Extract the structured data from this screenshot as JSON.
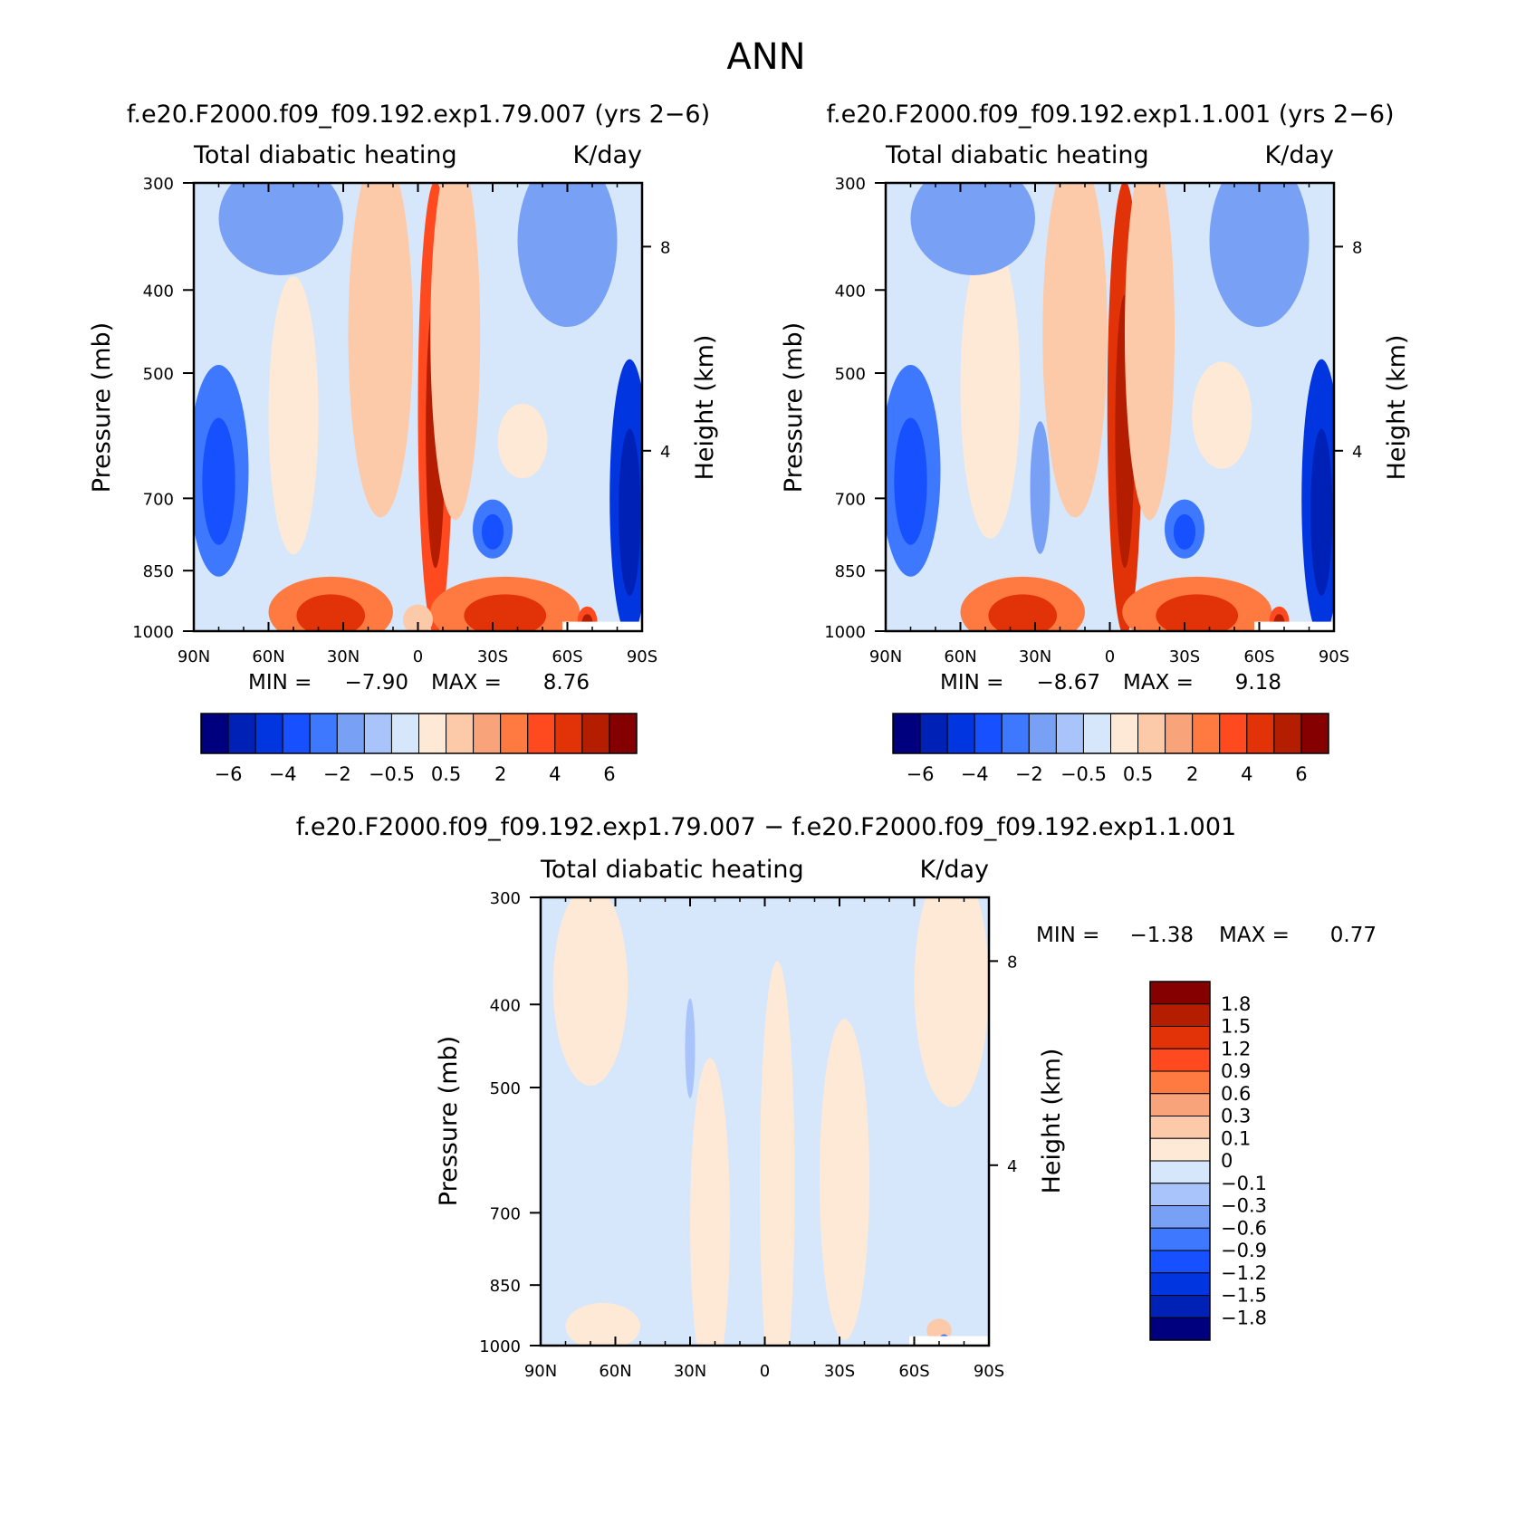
{
  "title": "ANN",
  "chart_data": [
    {
      "type": "heatmap",
      "title": "f.e20.F2000.f09_f09.192.exp1.79.007 (yrs 2−6)",
      "variable": "Total diabatic heating",
      "units": "K/day",
      "ylabel": "Pressure (mb)",
      "ylabel_right": "Height (km)",
      "x_ticks": [
        "90N",
        "60N",
        "30N",
        "0",
        "30S",
        "60S",
        "90S"
      ],
      "y_ticks": [
        "300",
        "400",
        "500",
        "700",
        "850",
        "1000"
      ],
      "y_right_ticks": [
        "8",
        "4"
      ],
      "xlim": [
        "90N",
        "90S"
      ],
      "ylim": [
        1000,
        300
      ],
      "min_label": "MIN =",
      "min_value": "−7.90",
      "max_label": "MAX =",
      "max_value": "8.76",
      "colorbar_levels": [
        "−6",
        "−4",
        "−2",
        "−0.5",
        "0.5",
        "2",
        "4",
        "6"
      ],
      "blobs": [
        {
          "lat": -7,
          "p": 550,
          "value": 4.0,
          "rlat": 7,
          "rp": 300
        },
        {
          "lat": 15,
          "p": 450,
          "value": 1.0,
          "rlat": 13,
          "rp": 220
        },
        {
          "lat": -15,
          "p": 450,
          "value": 1.0,
          "rlat": 10,
          "rp": 230
        },
        {
          "lat": 50,
          "p": 560,
          "value": 0.4,
          "rlat": 10,
          "rp": 200
        },
        {
          "lat": -42,
          "p": 600,
          "value": 0.4,
          "rlat": 10,
          "rp": 60
        },
        {
          "lat": 35,
          "p": 950,
          "value": 3.0,
          "rlat": 25,
          "rp": 90
        },
        {
          "lat": -35,
          "p": 950,
          "value": 3.0,
          "rlat": 30,
          "rp": 90
        },
        {
          "lat": 0,
          "p": 970,
          "value": 0.6,
          "rlat": 6,
          "rp": 40
        },
        {
          "lat": -68,
          "p": 975,
          "value": 4.0,
          "rlat": 4,
          "rp": 40
        },
        {
          "lat": 80,
          "p": 650,
          "value": -2.5,
          "rlat": 12,
          "rp": 180
        },
        {
          "lat": -85,
          "p": 700,
          "value": -4.0,
          "rlat": 8,
          "rp": 250
        },
        {
          "lat": -30,
          "p": 760,
          "value": -2.0,
          "rlat": 8,
          "rp": 60
        },
        {
          "lat": -60,
          "p": 350,
          "value": -1.0,
          "rlat": 20,
          "rp": 80
        },
        {
          "lat": 55,
          "p": 330,
          "value": -1.0,
          "rlat": 25,
          "rp": 50
        }
      ]
    },
    {
      "type": "heatmap",
      "title": "f.e20.F2000.f09_f09.192.exp1.1.001 (yrs 2−6)",
      "variable": "Total diabatic heating",
      "units": "K/day",
      "ylabel": "Pressure (mb)",
      "ylabel_right": "Height (km)",
      "x_ticks": [
        "90N",
        "60N",
        "30N",
        "0",
        "30S",
        "60S",
        "90S"
      ],
      "y_ticks": [
        "300",
        "400",
        "500",
        "700",
        "850",
        "1000"
      ],
      "y_right_ticks": [
        "8",
        "4"
      ],
      "xlim": [
        "90N",
        "90S"
      ],
      "ylim": [
        1000,
        300
      ],
      "min_label": "MIN =",
      "min_value": "−8.67",
      "max_label": "MAX =",
      "max_value": "9.18",
      "colorbar_levels": [
        "−6",
        "−4",
        "−2",
        "−0.5",
        "0.5",
        "2",
        "4",
        "6"
      ],
      "blobs": [
        {
          "lat": -6,
          "p": 550,
          "value": 4.5,
          "rlat": 7,
          "rp": 300
        },
        {
          "lat": 14,
          "p": 450,
          "value": 1.0,
          "rlat": 13,
          "rp": 220
        },
        {
          "lat": -16,
          "p": 450,
          "value": 1.0,
          "rlat": 10,
          "rp": 230
        },
        {
          "lat": 48,
          "p": 520,
          "value": 0.4,
          "rlat": 12,
          "rp": 200
        },
        {
          "lat": -45,
          "p": 560,
          "value": 0.4,
          "rlat": 12,
          "rp": 80
        },
        {
          "lat": 35,
          "p": 950,
          "value": 3.0,
          "rlat": 25,
          "rp": 90
        },
        {
          "lat": -35,
          "p": 950,
          "value": 3.0,
          "rlat": 30,
          "rp": 90
        },
        {
          "lat": -68,
          "p": 975,
          "value": 4.0,
          "rlat": 4,
          "rp": 40
        },
        {
          "lat": 80,
          "p": 650,
          "value": -2.5,
          "rlat": 12,
          "rp": 180
        },
        {
          "lat": -85,
          "p": 700,
          "value": -4.0,
          "rlat": 8,
          "rp": 250
        },
        {
          "lat": -30,
          "p": 760,
          "value": -2.0,
          "rlat": 8,
          "rp": 60
        },
        {
          "lat": 28,
          "p": 680,
          "value": -1.0,
          "rlat": 4,
          "rp": 120
        },
        {
          "lat": -60,
          "p": 350,
          "value": -1.0,
          "rlat": 20,
          "rp": 80
        },
        {
          "lat": 55,
          "p": 330,
          "value": -1.0,
          "rlat": 25,
          "rp": 50
        }
      ]
    },
    {
      "type": "heatmap",
      "title": "f.e20.F2000.f09_f09.192.exp1.79.007 − f.e20.F2000.f09_f09.192.exp1.1.001",
      "variable": "Total diabatic heating",
      "units": "K/day",
      "ylabel": "Pressure (mb)",
      "ylabel_right": "Height (km)",
      "x_ticks": [
        "90N",
        "60N",
        "30N",
        "0",
        "30S",
        "60S",
        "90S"
      ],
      "y_ticks": [
        "300",
        "400",
        "500",
        "700",
        "850",
        "1000"
      ],
      "y_right_ticks": [
        "8",
        "4"
      ],
      "xlim": [
        "90N",
        "90S"
      ],
      "ylim": [
        1000,
        300
      ],
      "min_label": "MIN =",
      "min_value": "−1.38",
      "max_label": "MAX =",
      "max_value": "0.77",
      "colorbar_levels": [
        "1.8",
        "1.5",
        "1.2",
        "0.9",
        "0.6",
        "0.3",
        "0.1",
        "0",
        "−0.1",
        "−0.3",
        "−0.6",
        "−0.9",
        "−1.2",
        "−1.5",
        "−1.8"
      ],
      "blobs": [
        {
          "lat": 22,
          "p": 720,
          "value": 0.05,
          "rlat": 8,
          "rp": 300
        },
        {
          "lat": -5,
          "p": 650,
          "value": 0.05,
          "rlat": 7,
          "rp": 350
        },
        {
          "lat": -32,
          "p": 640,
          "value": 0.05,
          "rlat": 10,
          "rp": 260
        },
        {
          "lat": 70,
          "p": 380,
          "value": 0.05,
          "rlat": 15,
          "rp": 100
        },
        {
          "lat": -75,
          "p": 380,
          "value": 0.05,
          "rlat": 15,
          "rp": 120
        },
        {
          "lat": 65,
          "p": 950,
          "value": 0.05,
          "rlat": 15,
          "rp": 60
        },
        {
          "lat": -70,
          "p": 960,
          "value": 0.15,
          "rlat": 5,
          "rp": 30
        },
        {
          "lat": 30,
          "p": 450,
          "value": -0.2,
          "rlat": 2,
          "rp": 60
        },
        {
          "lat": -72,
          "p": 985,
          "value": -0.7,
          "rlat": 2,
          "rp": 15
        }
      ]
    }
  ],
  "colors": {
    "divergent_16": [
      "#00007f",
      "#0021b5",
      "#0035e0",
      "#1750ff",
      "#3d78ff",
      "#78a0f5",
      "#a8c4fa",
      "#d6e7fc",
      "#fde9d6",
      "#fcc9a9",
      "#f9a37a",
      "#ff7a40",
      "#ff4a1f",
      "#e13208",
      "#b41d00",
      "#850000"
    ]
  }
}
